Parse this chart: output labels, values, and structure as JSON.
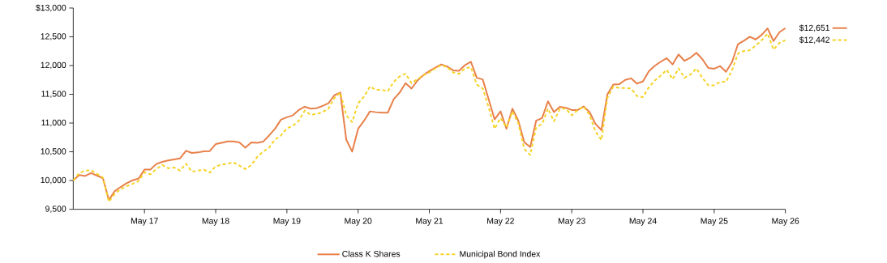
{
  "chart_data": {
    "type": "line",
    "x": [
      "2016-05",
      "2016-06",
      "2016-07",
      "2016-08",
      "2016-09",
      "2016-10",
      "2016-11",
      "2016-12",
      "2017-01",
      "2017-02",
      "2017-03",
      "2017-04",
      "2017-05",
      "2017-06",
      "2017-07",
      "2017-08",
      "2017-09",
      "2017-10",
      "2017-11",
      "2017-12",
      "2018-01",
      "2018-02",
      "2018-03",
      "2018-04",
      "2018-05",
      "2018-06",
      "2018-07",
      "2018-08",
      "2018-09",
      "2018-10",
      "2018-11",
      "2018-12",
      "2019-01",
      "2019-02",
      "2019-03",
      "2019-04",
      "2019-05",
      "2019-06",
      "2019-07",
      "2019-08",
      "2019-09",
      "2019-10",
      "2019-11",
      "2019-12",
      "2020-01",
      "2020-02",
      "2020-03",
      "2020-04",
      "2020-05",
      "2020-06",
      "2020-07",
      "2020-08",
      "2020-09",
      "2020-10",
      "2020-11",
      "2020-12",
      "2021-01",
      "2021-02",
      "2021-03",
      "2021-04",
      "2021-05",
      "2021-06",
      "2021-07",
      "2021-08",
      "2021-09",
      "2021-10",
      "2021-11",
      "2021-12",
      "2022-01",
      "2022-02",
      "2022-03",
      "2022-04",
      "2022-05",
      "2022-06",
      "2022-07",
      "2022-08",
      "2022-09",
      "2022-10",
      "2022-11",
      "2022-12",
      "2023-01",
      "2023-02",
      "2023-03",
      "2023-04",
      "2023-05",
      "2023-06",
      "2023-07",
      "2023-08",
      "2023-09",
      "2023-10",
      "2023-11",
      "2023-12",
      "2024-01",
      "2024-02",
      "2024-03",
      "2024-04",
      "2024-05",
      "2024-06",
      "2024-07",
      "2024-08",
      "2024-09",
      "2024-10",
      "2024-11",
      "2024-12",
      "2025-01",
      "2025-02",
      "2025-03",
      "2025-04",
      "2025-05",
      "2025-06",
      "2025-07",
      "2025-08",
      "2025-09",
      "2025-10",
      "2025-11",
      "2025-12",
      "2026-01",
      "2026-02",
      "2026-03",
      "2026-04",
      "2026-05"
    ],
    "series": [
      {
        "name": "Class K Shares",
        "color": "#e8804a",
        "line_style": "solid",
        "values": [
          10000,
          10097,
          10080,
          10130,
          10086,
          10040,
          9664,
          9817,
          9888,
          9953,
          10004,
          10032,
          10190,
          10190,
          10288,
          10325,
          10349,
          10368,
          10386,
          10517,
          10480,
          10489,
          10508,
          10512,
          10634,
          10657,
          10680,
          10680,
          10662,
          10573,
          10662,
          10657,
          10676,
          10783,
          10900,
          11059,
          11101,
          11133,
          11227,
          11283,
          11250,
          11259,
          11297,
          11343,
          11483,
          11530,
          10713,
          10503,
          10900,
          11040,
          11203,
          11189,
          11180,
          11180,
          11413,
          11530,
          11693,
          11600,
          11740,
          11833,
          11903,
          11964,
          12020,
          11983,
          11917,
          11908,
          12006,
          12067,
          11787,
          11759,
          11413,
          11063,
          11203,
          10900,
          11250,
          11040,
          10667,
          10583,
          11040,
          11087,
          11377,
          11190,
          11283,
          11264,
          11227,
          11227,
          11288,
          11190,
          10984,
          10877,
          11497,
          11670,
          11675,
          11750,
          11777,
          11684,
          11726,
          11903,
          11997,
          12067,
          12127,
          12020,
          12193,
          12081,
          12137,
          12221,
          12113,
          11959,
          11945,
          11990,
          11890,
          12060,
          12370,
          12431,
          12501,
          12454,
          12533,
          12645,
          12426,
          12580,
          12651
        ]
      },
      {
        "name": "Municipal Bond Index",
        "color": "#f5d327",
        "line_style": "dashed",
        "values": [
          10000,
          10130,
          10172,
          10181,
          10116,
          10050,
          9630,
          9770,
          9850,
          9902,
          9944,
          9990,
          10144,
          10107,
          10200,
          10270,
          10214,
          10228,
          10172,
          10293,
          10153,
          10172,
          10190,
          10139,
          10247,
          10275,
          10293,
          10316,
          10260,
          10200,
          10270,
          10410,
          10503,
          10573,
          10713,
          10783,
          10909,
          10950,
          11040,
          11217,
          11143,
          11157,
          11189,
          11250,
          11437,
          11530,
          11133,
          11017,
          11343,
          11460,
          11637,
          11577,
          11577,
          11553,
          11717,
          11810,
          11857,
          11693,
          11763,
          11833,
          11880,
          11950,
          12006,
          11973,
          11880,
          11857,
          11950,
          11973,
          11670,
          11600,
          11273,
          10900,
          11087,
          10923,
          11203,
          10993,
          10550,
          10443,
          10923,
          10984,
          11250,
          11031,
          11250,
          11250,
          11133,
          11227,
          11288,
          11143,
          10853,
          10703,
          11437,
          11633,
          11610,
          11610,
          11600,
          11470,
          11450,
          11623,
          11740,
          11824,
          11927,
          11763,
          11950,
          11787,
          11843,
          11950,
          11787,
          11656,
          11656,
          11717,
          11717,
          11917,
          12207,
          12253,
          12267,
          12347,
          12440,
          12557,
          12277,
          12393,
          12442
        ]
      }
    ],
    "xlim": [
      "2016-05",
      "2026-05"
    ],
    "xticks": [
      {
        "value": "2017-05",
        "label": "May 17"
      },
      {
        "value": "2018-05",
        "label": "May 18"
      },
      {
        "value": "2019-05",
        "label": "May 19"
      },
      {
        "value": "2020-05",
        "label": "May 20"
      },
      {
        "value": "2021-05",
        "label": "May 21"
      },
      {
        "value": "2022-05",
        "label": "May 22"
      },
      {
        "value": "2023-05",
        "label": "May 23"
      },
      {
        "value": "2024-05",
        "label": "May 24"
      },
      {
        "value": "2025-05",
        "label": "May 25"
      },
      {
        "value": "2026-05",
        "label": "May 26"
      }
    ],
    "ylim": [
      9500,
      13000
    ],
    "yticks": [
      {
        "value": 9500,
        "label": "9,500"
      },
      {
        "value": 10000,
        "label": "10,000"
      },
      {
        "value": 10500,
        "label": "10,500"
      },
      {
        "value": 11000,
        "label": "11,000"
      },
      {
        "value": 11500,
        "label": "11,500"
      },
      {
        "value": 12000,
        "label": "12,000"
      },
      {
        "value": 12500,
        "label": "12,500"
      },
      {
        "value": 13000,
        "label": "$13,000"
      }
    ],
    "annotations": [
      {
        "text": "$12,651",
        "x": "2026-05",
        "y": 12651
      },
      {
        "text": "$12,442",
        "x": "2026-05",
        "y": 12442
      }
    ],
    "legend": "bottom",
    "marker": "none",
    "grid": false
  }
}
